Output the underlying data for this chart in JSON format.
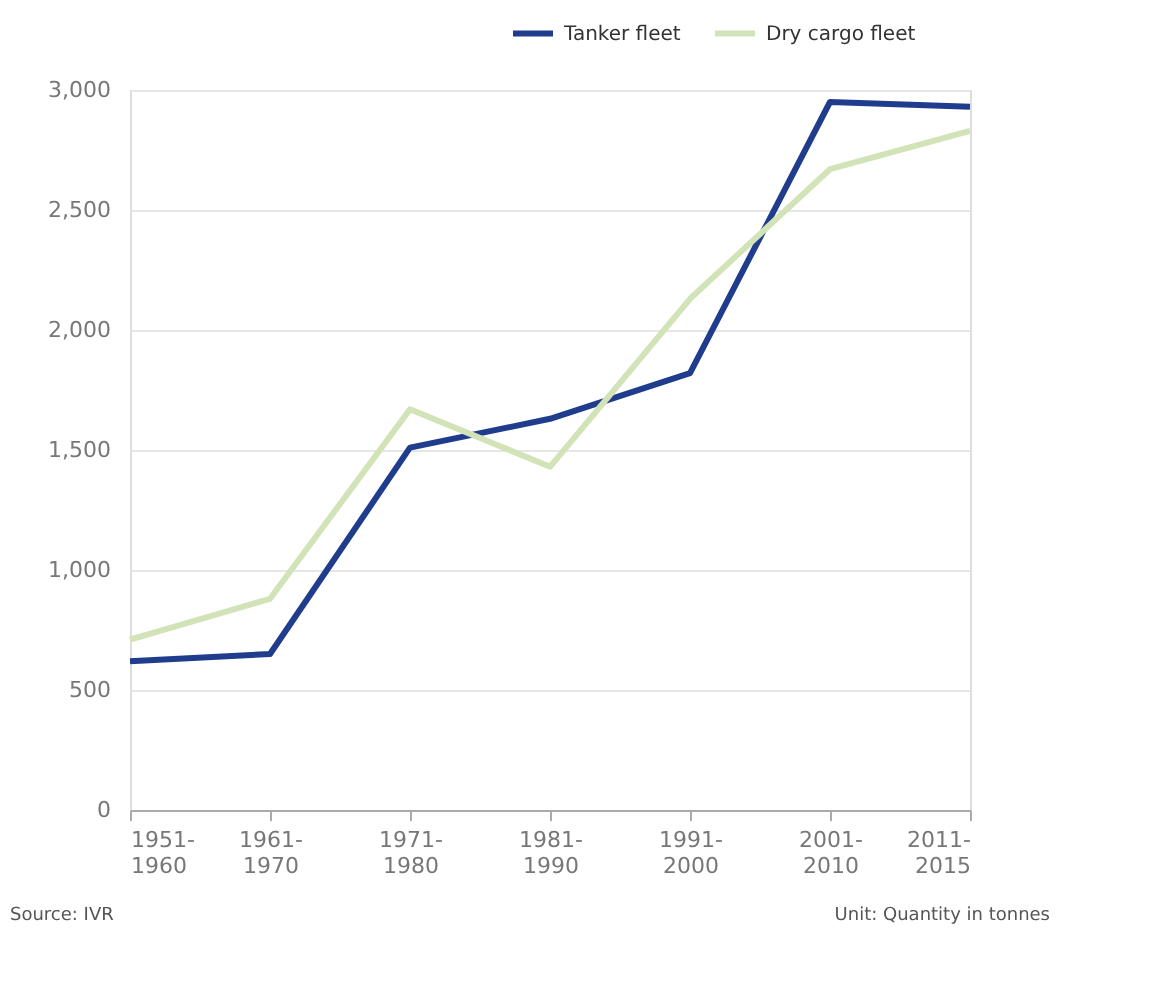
{
  "chart_data": {
    "type": "line",
    "categories": [
      "1951-1960",
      "1961-1970",
      "1971-1980",
      "1981-1990",
      "1991-2000",
      "2001-2010",
      "2011-2015"
    ],
    "series": [
      {
        "name": "Tanker fleet",
        "color": "#1f3d8c",
        "values": [
          620,
          650,
          1510,
          1630,
          1820,
          2950,
          2930
        ]
      },
      {
        "name": "Dry cargo fleet",
        "color": "#d2e3b8",
        "values": [
          710,
          880,
          1670,
          1430,
          2130,
          2670,
          2830
        ]
      }
    ],
    "ylim": [
      0,
      3000
    ],
    "yticks": [
      0,
      {
        "value": 500,
        "label": "500"
      },
      {
        "value": 1000,
        "label": "1,000"
      },
      {
        "value": 1500,
        "label": "1,500"
      },
      {
        "value": 2000,
        "label": "2,000"
      },
      {
        "value": 2500,
        "label": "2,500"
      },
      {
        "value": 3000,
        "label": "3,000"
      }
    ],
    "grid": "y",
    "legend": "top right",
    "marker": "none",
    "line_style": "solid",
    "annotations": [
      "Source: IVR",
      "Unit: Quantity in tonnes"
    ]
  }
}
